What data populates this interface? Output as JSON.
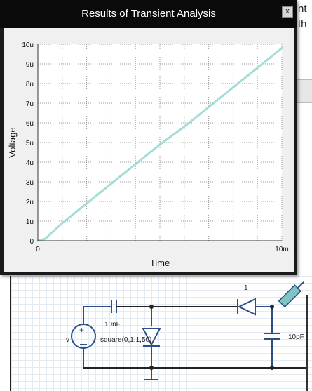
{
  "background": {
    "peek_top": "nt",
    "peek_bottom": "th"
  },
  "dialog": {
    "title": "Results of Transient Analysis",
    "close_label": "x"
  },
  "chart_data": {
    "type": "line",
    "title": "",
    "xlabel": "Time",
    "ylabel": "Voltage",
    "xlim": [
      0,
      10
    ],
    "ylim": [
      0,
      10
    ],
    "x_ticks": [
      {
        "v": 0,
        "label": "0"
      },
      {
        "v": 10,
        "label": "10m"
      }
    ],
    "y_ticks": [
      {
        "v": 0,
        "label": "0"
      },
      {
        "v": 1,
        "label": "1u"
      },
      {
        "v": 2,
        "label": "2u"
      },
      {
        "v": 3,
        "label": "3u"
      },
      {
        "v": 4,
        "label": "4u"
      },
      {
        "v": 5,
        "label": "5u"
      },
      {
        "v": 6,
        "label": "6u"
      },
      {
        "v": 7,
        "label": "7u"
      },
      {
        "v": 8,
        "label": "8u"
      },
      {
        "v": 9,
        "label": "9u"
      },
      {
        "v": 10,
        "label": "10u"
      }
    ],
    "x_gridlines": [
      0,
      1,
      2,
      3,
      4,
      5,
      6,
      7,
      8,
      9,
      10
    ],
    "grid": true,
    "series": [
      {
        "color": "#a4dcd8",
        "x": [
          0,
          0.3,
          1,
          2,
          3,
          4,
          5,
          6,
          7,
          8,
          9,
          10
        ],
        "y": [
          0,
          0.1,
          0.9,
          1.9,
          2.9,
          3.9,
          4.9,
          5.8,
          6.8,
          7.8,
          8.8,
          9.8
        ]
      }
    ],
    "x_unit": "ms",
    "y_unit": "uV"
  },
  "schematic": {
    "source_name": "v",
    "source_value": "square(0,1,1,50)",
    "cap1_label": "10nF",
    "diode_label": "1",
    "cap2_label": "10pF"
  }
}
